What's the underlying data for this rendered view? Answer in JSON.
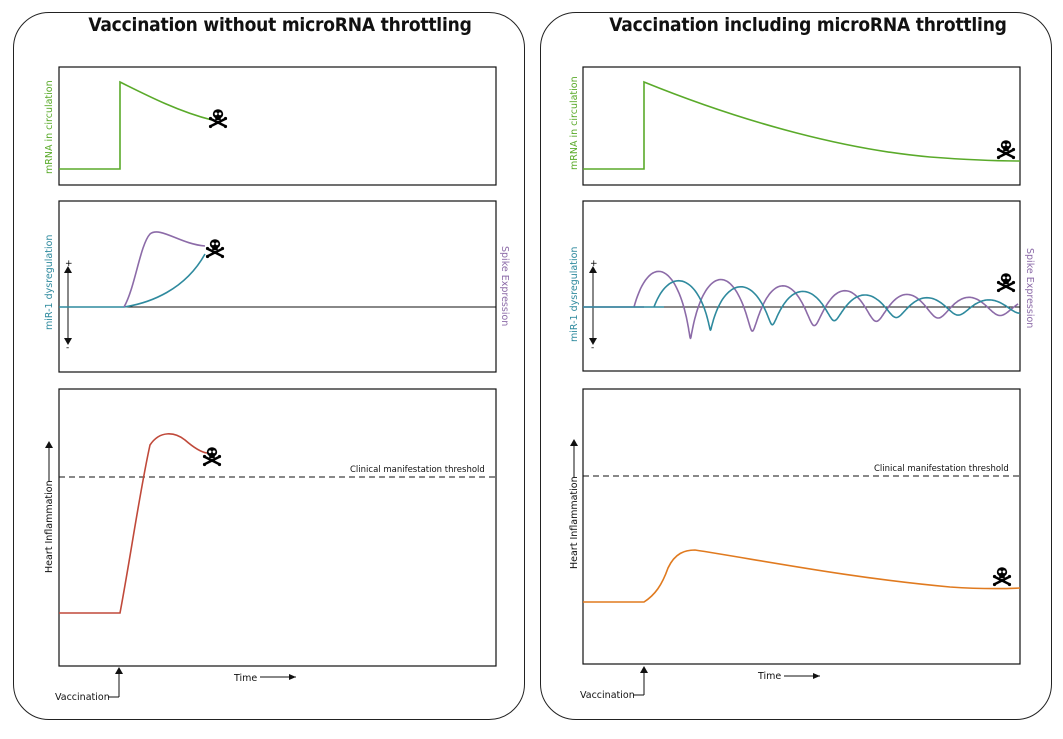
{
  "colors": {
    "mrna": "#5aaa2a",
    "spike": "#8c6ba8",
    "mir": "#2f8a9e",
    "inflammation_left": "#c0493a",
    "inflammation_right": "#e07a1f",
    "axis": "#111111"
  },
  "icons": [
    "skull-crossbones-icon"
  ],
  "left": {
    "title": "Vaccination without microRNA throttling",
    "mrna_label": "mRNA in circulation",
    "mir_label": "miR-1 dysregulation",
    "spike_label": "Spike Expression",
    "plus": "+",
    "minus": "-",
    "inflammation_label": "Heart Inflammation",
    "threshold_label": "Clinical manifestation threshold",
    "time_label": "Time",
    "vaccination_label": "Vaccination"
  },
  "right": {
    "title": "Vaccination including microRNA throttling",
    "mrna_label": "mRNA in circulation",
    "mir_label": "miR-1 dysregulation",
    "spike_label": "Spike Expression",
    "plus": "+",
    "minus": "-",
    "inflammation_label": "Heart Inflammation",
    "threshold_label": "Clinical manifestation threshold",
    "time_label": "Time",
    "vaccination_label": "Vaccination"
  }
}
